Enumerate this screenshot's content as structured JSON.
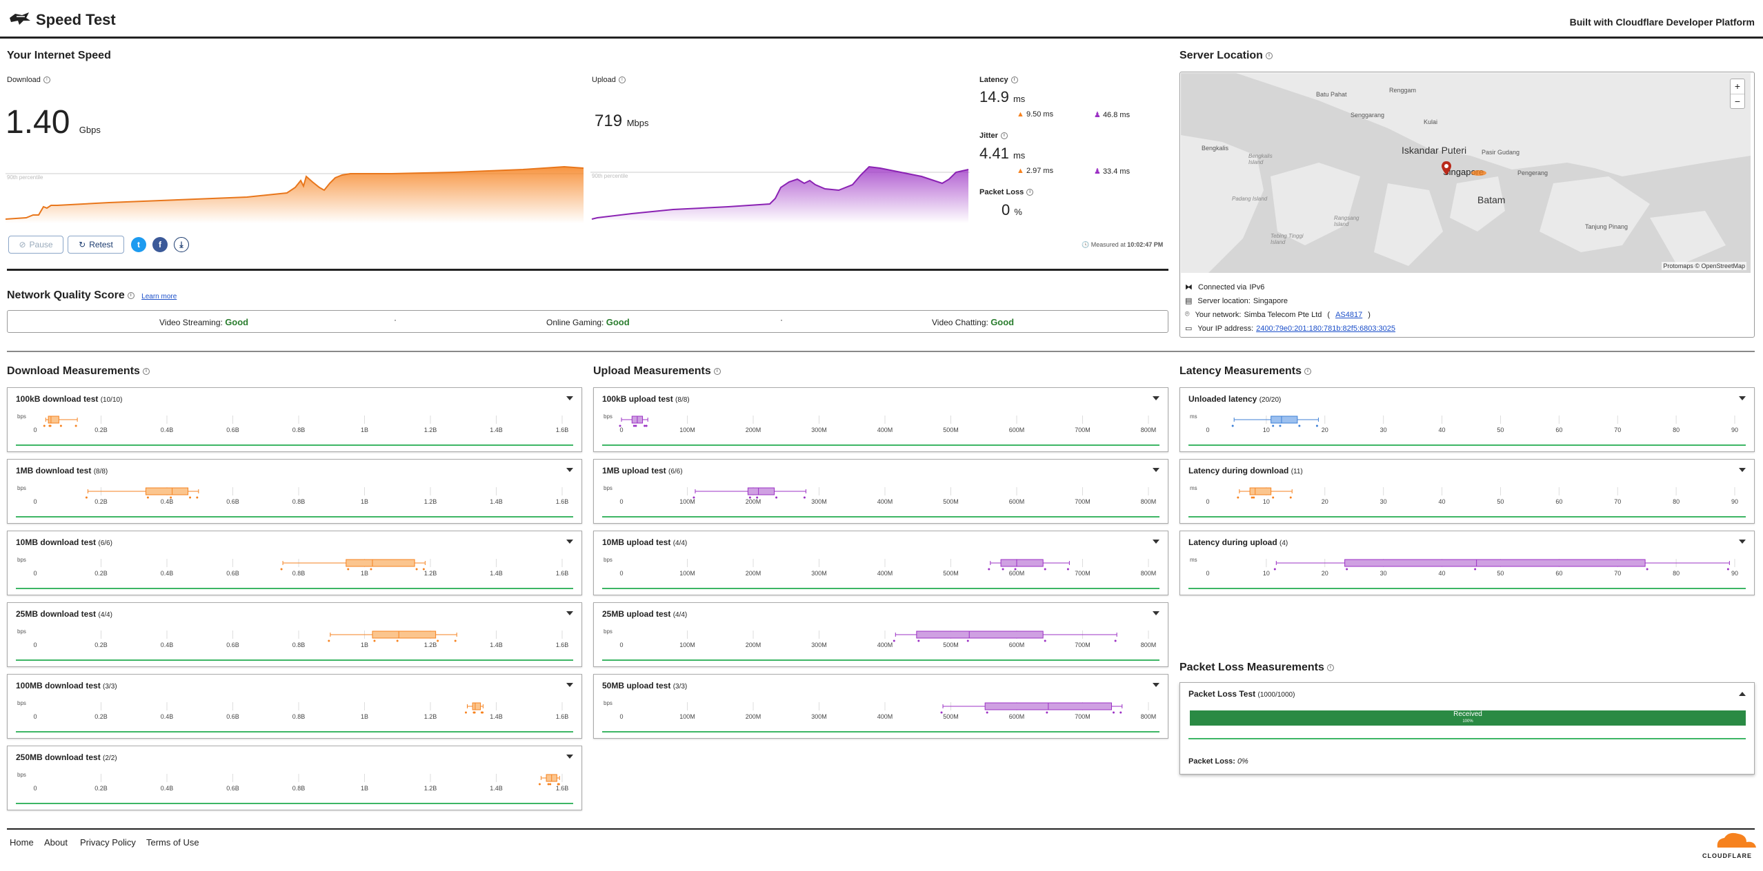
{
  "header": {
    "title": "Speed Test",
    "built_with": "Built with Cloudflare Developer Platform"
  },
  "speed": {
    "section_title": "Your Internet Speed",
    "download": {
      "label": "Download",
      "value": "1.40",
      "unit": "Gbps",
      "percentile": "90th percentile"
    },
    "upload": {
      "label": "Upload",
      "value": "719",
      "unit": "Mbps",
      "percentile": "90th percentile"
    },
    "latency": {
      "label": "Latency",
      "value": "14.9",
      "unit": "ms",
      "down": "9.50 ms",
      "up": "46.8 ms"
    },
    "jitter": {
      "label": "Jitter",
      "value": "4.41",
      "unit": "ms",
      "down": "2.97 ms",
      "up": "33.4 ms"
    },
    "packet_loss": {
      "label": "Packet Loss",
      "value": "0",
      "unit": "%"
    },
    "pause_label": "Pause",
    "retest_label": "Retest",
    "measured_label": "Measured at",
    "measured_time": "10:02:47 PM"
  },
  "nqs": {
    "title": "Network Quality Score",
    "learn_more": "Learn more",
    "items": [
      {
        "label": "Video Streaming:",
        "value": "Good"
      },
      {
        "label": "Online Gaming:",
        "value": "Good"
      },
      {
        "label": "Video Chatting:",
        "value": "Good"
      }
    ]
  },
  "server": {
    "title": "Server Location",
    "map_labels": [
      "Batu Pahat",
      "Renggam",
      "Senggarang",
      "Kulai",
      "Iskandar Puteri",
      "Pasir Gudang",
      "Singapore",
      "Pengerang",
      "Bengkalis",
      "Bengkalis Island",
      "Batam",
      "Padang Island",
      "Rangsang Island",
      "Tebing Tinggi Island",
      "Tanjung Pinang"
    ],
    "attribution": "Protomaps © OpenStreetMap",
    "zoom_in": "+",
    "zoom_out": "−",
    "connected_label": "Connected via",
    "connected_value": "IPv6",
    "location_label": "Server location:",
    "location_value": "Singapore",
    "network_label": "Your network:",
    "network_value": "Simba Telecom Pte Ltd",
    "network_as": "AS4817",
    "ip_label": "Your IP address:",
    "ip_value": "2400:79e0:201:180:781b:82f5:6803:3025"
  },
  "download_meas": {
    "title": "Download Measurements",
    "axis": [
      "0",
      "0.2B",
      "0.4B",
      "0.6B",
      "0.8B",
      "1B",
      "1.2B",
      "1.4B",
      "1.6B"
    ],
    "unit": "bps",
    "tests": [
      {
        "name": "100kB download test",
        "count": "(10/10)"
      },
      {
        "name": "1MB download test",
        "count": "(8/8)"
      },
      {
        "name": "10MB download test",
        "count": "(6/6)"
      },
      {
        "name": "25MB download test",
        "count": "(4/4)"
      },
      {
        "name": "100MB download test",
        "count": "(3/3)"
      },
      {
        "name": "250MB download test",
        "count": "(2/2)"
      }
    ]
  },
  "upload_meas": {
    "title": "Upload Measurements",
    "axis": [
      "0",
      "100M",
      "200M",
      "300M",
      "400M",
      "500M",
      "600M",
      "700M",
      "800M"
    ],
    "unit": "bps",
    "tests": [
      {
        "name": "100kB upload test",
        "count": "(8/8)"
      },
      {
        "name": "1MB upload test",
        "count": "(6/6)"
      },
      {
        "name": "10MB upload test",
        "count": "(4/4)"
      },
      {
        "name": "25MB upload test",
        "count": "(4/4)"
      },
      {
        "name": "50MB upload test",
        "count": "(3/3)"
      }
    ]
  },
  "latency_meas": {
    "title": "Latency Measurements",
    "axis": [
      "0",
      "10",
      "20",
      "30",
      "40",
      "50",
      "60",
      "70",
      "80",
      "90"
    ],
    "unit": "ms",
    "tests": [
      {
        "name": "Unloaded latency",
        "count": "(20/20)"
      },
      {
        "name": "Latency during download",
        "count": "(11)"
      },
      {
        "name": "Latency during upload",
        "count": "(4)"
      }
    ]
  },
  "packet_meas": {
    "title": "Packet Loss Measurements",
    "test_name": "Packet Loss Test",
    "count": "(1000/1000)",
    "bar_label": "Received",
    "bar_pct": "100%",
    "loss_label": "Packet Loss:",
    "loss_value": "0%"
  },
  "footer": {
    "links": [
      "Home",
      "About",
      "Privacy Policy",
      "Terms of Use"
    ],
    "brand": "CLOUDFLARE"
  },
  "colors": {
    "download": "#f6821f",
    "upload": "#9b30c4",
    "latency": "#3c7fd6",
    "good": "#2a7d2e",
    "received": "#2a8a44"
  }
}
